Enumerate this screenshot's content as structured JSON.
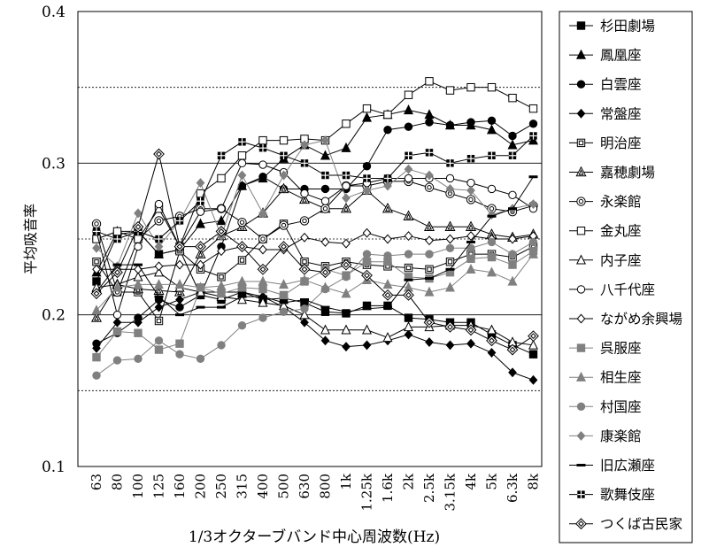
{
  "chart_data": {
    "type": "line",
    "title": "",
    "xlabel": "1/3オクターブバンド中心周波数(Hz)",
    "ylabel": "平均吸音率",
    "ylim": [
      0.1,
      0.4
    ],
    "yticks": [
      "0.1",
      "0.2",
      "0.3",
      "0.4"
    ],
    "grid": "horizontal lines at 0.15, 0.2, 0.25, 0.3, 0.35",
    "legend_position": "right",
    "categories": [
      "63",
      "80",
      "100",
      "125",
      "160",
      "200",
      "250",
      "315",
      "400",
      "500",
      "630",
      "800",
      "1k",
      "1.25k",
      "1.6k",
      "2k",
      "2.5k",
      "3.15k",
      "4k",
      "5k",
      "6.3k",
      "8k"
    ],
    "series": [
      {
        "name": "杉田劇場",
        "marker": "square-filled",
        "color": "#000000",
        "values": [
          0.222,
          0.253,
          0.255,
          0.24,
          0.243,
          0.213,
          0.21,
          0.215,
          0.21,
          0.211,
          0.208,
          0.202,
          0.201,
          0.206,
          0.206,
          0.198,
          0.197,
          0.195,
          0.195,
          0.187,
          0.18,
          0.174
        ]
      },
      {
        "name": "鳳凰座",
        "marker": "triangle-filled",
        "color": "#000000",
        "values": [
          0.228,
          0.255,
          0.255,
          0.24,
          0.243,
          0.26,
          0.262,
          0.285,
          0.29,
          0.303,
          0.312,
          0.305,
          0.31,
          0.33,
          0.332,
          0.335,
          0.332,
          0.325,
          0.325,
          0.322,
          0.312,
          0.315
        ]
      },
      {
        "name": "白雲座",
        "marker": "circle-filled",
        "color": "#000000",
        "values": [
          0.181,
          0.188,
          0.198,
          0.21,
          0.205,
          0.213,
          0.245,
          0.285,
          0.291,
          0.283,
          0.283,
          0.283,
          0.283,
          0.298,
          0.322,
          0.324,
          0.327,
          0.325,
          0.327,
          0.328,
          0.318,
          0.326
        ]
      },
      {
        "name": "常盤座",
        "marker": "diamond-filled",
        "color": "#000000",
        "values": [
          0.178,
          0.195,
          0.195,
          0.205,
          0.21,
          0.215,
          0.215,
          0.215,
          0.212,
          0.205,
          0.195,
          0.183,
          0.179,
          0.18,
          0.183,
          0.187,
          0.182,
          0.18,
          0.181,
          0.175,
          0.162,
          0.157
        ]
      },
      {
        "name": "明治座",
        "marker": "square-double",
        "color": "#000000",
        "values": [
          0.235,
          0.215,
          0.215,
          0.196,
          0.242,
          0.23,
          0.225,
          0.236,
          0.25,
          0.26,
          0.235,
          0.232,
          0.235,
          0.233,
          0.232,
          0.231,
          0.23,
          0.235,
          0.24,
          0.24,
          0.238,
          0.245
        ]
      },
      {
        "name": "嘉穂劇場",
        "marker": "triangle-double",
        "color": "#000000",
        "values": [
          0.198,
          0.22,
          0.217,
          0.216,
          0.215,
          0.24,
          0.252,
          0.258,
          0.267,
          0.283,
          0.276,
          0.27,
          0.27,
          0.282,
          0.27,
          0.265,
          0.258,
          0.258,
          0.258,
          0.253,
          0.251,
          0.253
        ]
      },
      {
        "name": "永楽館",
        "marker": "circle-double",
        "color": "#000000",
        "values": [
          0.26,
          0.215,
          0.25,
          0.262,
          0.265,
          0.27,
          0.27,
          0.261,
          0.25,
          0.259,
          0.262,
          0.27,
          0.285,
          0.285,
          0.288,
          0.288,
          0.284,
          0.28,
          0.276,
          0.27,
          0.268,
          0.272
        ]
      },
      {
        "name": "金丸座",
        "marker": "square-open",
        "color": "#000000",
        "values": [
          0.25,
          0.255,
          0.25,
          0.27,
          0.245,
          0.28,
          0.29,
          0.305,
          0.315,
          0.315,
          0.316,
          0.315,
          0.326,
          0.336,
          0.332,
          0.345,
          0.354,
          0.348,
          0.35,
          0.35,
          0.343,
          0.336
        ]
      },
      {
        "name": "内子座",
        "marker": "triangle-open",
        "color": "#000000",
        "values": [
          0.218,
          0.22,
          0.225,
          0.228,
          0.218,
          0.215,
          0.212,
          0.21,
          0.208,
          0.206,
          0.2,
          0.19,
          0.19,
          0.19,
          0.185,
          0.192,
          0.192,
          0.193,
          0.193,
          0.19,
          0.182,
          0.18
        ]
      },
      {
        "name": "八千代座",
        "marker": "circle-open",
        "color": "#000000",
        "values": [
          0.255,
          0.2,
          0.245,
          0.273,
          0.245,
          0.268,
          0.27,
          0.3,
          0.299,
          0.294,
          0.28,
          0.275,
          0.285,
          0.287,
          0.29,
          0.29,
          0.29,
          0.29,
          0.287,
          0.283,
          0.279,
          0.27
        ]
      },
      {
        "name": "ながめ余興場",
        "marker": "diamond-open",
        "color": "#000000",
        "values": [
          0.23,
          0.23,
          0.23,
          0.232,
          0.233,
          0.233,
          0.242,
          0.245,
          0.243,
          0.243,
          0.251,
          0.248,
          0.247,
          0.254,
          0.25,
          0.252,
          0.249,
          0.25,
          0.252,
          0.25,
          0.25,
          0.252
        ]
      },
      {
        "name": "呉服座",
        "marker": "square-filled-gray",
        "color": "#808080",
        "values": [
          0.172,
          0.189,
          0.188,
          0.177,
          0.181,
          0.218,
          0.214,
          0.218,
          0.217,
          0.213,
          0.222,
          0.23,
          0.226,
          0.235,
          0.235,
          0.225,
          0.224,
          0.228,
          0.237,
          0.238,
          0.233,
          0.242
        ]
      },
      {
        "name": "相生座",
        "marker": "triangle-filled-gray",
        "color": "#808080",
        "values": [
          0.203,
          0.218,
          0.22,
          0.22,
          0.22,
          0.218,
          0.219,
          0.222,
          0.222,
          0.22,
          0.223,
          0.218,
          0.214,
          0.223,
          0.22,
          0.218,
          0.215,
          0.218,
          0.23,
          0.228,
          0.222,
          0.24
        ]
      },
      {
        "name": "村国座",
        "marker": "circle-filled-gray",
        "color": "#808080",
        "values": [
          0.16,
          0.17,
          0.171,
          0.183,
          0.174,
          0.171,
          0.18,
          0.193,
          0.198,
          0.202,
          0.204,
          0.217,
          0.225,
          0.24,
          0.239,
          0.24,
          0.24,
          0.244,
          0.244,
          0.248,
          0.24,
          0.248
        ]
      },
      {
        "name": "康楽館",
        "marker": "diamond-filled-gray",
        "color": "#808080",
        "values": [
          0.244,
          0.232,
          0.267,
          0.245,
          0.262,
          0.287,
          0.252,
          0.292,
          0.267,
          0.292,
          0.312,
          0.315,
          0.277,
          0.282,
          0.285,
          0.296,
          0.292,
          0.283,
          0.282,
          0.266,
          0.27,
          0.273
        ]
      },
      {
        "name": "旧広瀬座",
        "marker": "dash",
        "color": "#000000",
        "values": [
          0.215,
          0.233,
          0.233,
          0.212,
          0.2,
          0.205,
          0.205,
          0.212,
          0.212,
          0.208,
          0.21,
          0.205,
          0.202,
          0.204,
          0.205,
          0.223,
          0.224,
          0.23,
          0.248,
          0.265,
          0.27,
          0.291
        ]
      },
      {
        "name": "歌舞伎座",
        "marker": "square-grid",
        "color": "#000000",
        "values": [
          0.255,
          0.25,
          0.255,
          0.25,
          0.262,
          0.275,
          0.305,
          0.314,
          0.31,
          0.305,
          0.3,
          0.292,
          0.292,
          0.29,
          0.29,
          0.305,
          0.307,
          0.3,
          0.303,
          0.305,
          0.305,
          0.318
        ]
      },
      {
        "name": "つくば古民家",
        "marker": "diamond-double",
        "color": "#000000",
        "values": [
          0.214,
          0.228,
          0.258,
          0.306,
          0.245,
          0.245,
          0.255,
          0.245,
          0.23,
          0.245,
          0.23,
          0.228,
          0.233,
          0.226,
          0.213,
          0.213,
          0.195,
          0.192,
          0.19,
          0.183,
          0.177,
          0.186
        ]
      }
    ]
  }
}
